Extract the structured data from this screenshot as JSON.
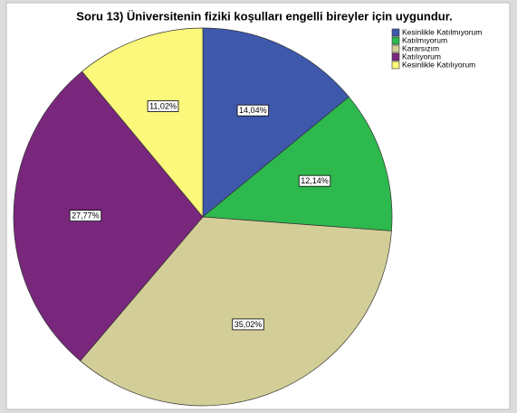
{
  "chart_data": {
    "type": "pie",
    "title": "Soru 13) Üniversitenin fiziki koşulları engelli bireyler için uygundur.",
    "categories": [
      "Kesinlikle Katılmıyorum",
      "Katılmıyorum",
      "Kararsızım",
      "Katılıyorum",
      "Kesinlikle Katılıyorum"
    ],
    "values": [
      14.04,
      12.14,
      35.02,
      27.77,
      11.02
    ],
    "value_labels": [
      "14,04%",
      "12,14%",
      "35,02%",
      "27,77%",
      "11,02%"
    ],
    "colors": [
      "#3e58ac",
      "#2db94d",
      "#d3ce97",
      "#79277c",
      "#fbf87b"
    ],
    "legend": "top-right"
  }
}
